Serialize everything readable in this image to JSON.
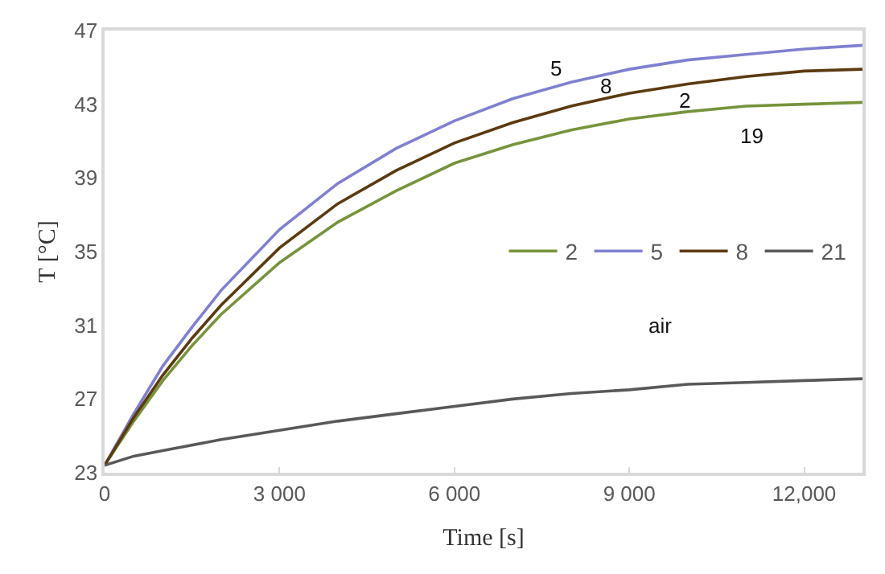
{
  "chart_data": {
    "type": "line",
    "xlabel": "Time [s]",
    "ylabel": "T [°C]",
    "x": [
      0,
      500,
      1000,
      1500,
      2000,
      3000,
      4000,
      5000,
      6000,
      7000,
      8000,
      9000,
      10000,
      11000,
      12000,
      13000
    ],
    "series": [
      {
        "name": "2",
        "color": "#77933c",
        "values": [
          23.4,
          25.8,
          28.0,
          29.9,
          31.6,
          34.4,
          36.6,
          38.3,
          39.8,
          40.8,
          41.6,
          42.2,
          42.6,
          42.9,
          43.0,
          43.1
        ]
      },
      {
        "name": "5",
        "color": "#8080d0",
        "values": [
          23.4,
          26.2,
          28.8,
          30.9,
          32.9,
          36.2,
          38.7,
          40.6,
          42.1,
          43.3,
          44.2,
          44.9,
          45.4,
          45.7,
          46.0,
          46.2
        ]
      },
      {
        "name": "8",
        "color": "#5c3a10",
        "values": [
          23.4,
          26.0,
          28.3,
          30.3,
          32.1,
          35.2,
          37.6,
          39.4,
          40.9,
          42.0,
          42.9,
          43.6,
          44.1,
          44.5,
          44.8,
          44.9
        ]
      },
      {
        "name": "21",
        "color": "#595959",
        "x": [
          0,
          500,
          1000,
          2000,
          3000,
          4000,
          5000,
          6000,
          7000,
          8000,
          9000,
          10000,
          11000,
          12000,
          13000
        ],
        "values": [
          23.4,
          23.9,
          24.2,
          24.8,
          25.3,
          25.8,
          26.2,
          26.6,
          27.0,
          27.3,
          27.5,
          27.8,
          27.9,
          28.0,
          28.1
        ]
      }
    ],
    "xlim": [
      0,
      13000
    ],
    "xticks": [
      {
        "value": 0,
        "label": "0"
      },
      {
        "value": 3000,
        "label": "3 000"
      },
      {
        "value": 6000,
        "label": "6 000"
      },
      {
        "value": 9000,
        "label": "9 000"
      },
      {
        "value": 12000,
        "label": "12,000"
      }
    ],
    "ylim": [
      23,
      47
    ],
    "yticks": [
      23,
      27,
      31,
      35,
      39,
      43,
      47
    ],
    "annotations": [
      "5",
      "8",
      "2",
      "19",
      "air"
    ],
    "legend": "right",
    "marker": "none",
    "line_style": "solid"
  }
}
